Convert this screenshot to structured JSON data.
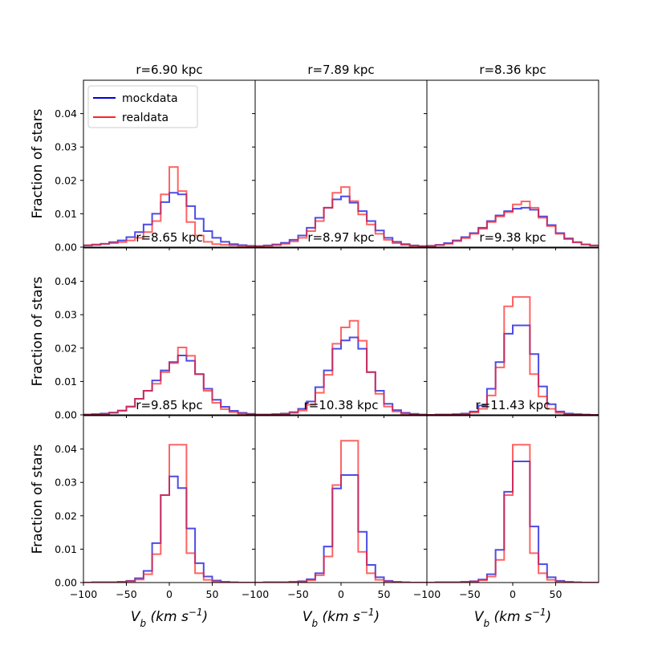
{
  "chart_data": {
    "type": "histogram-grid",
    "bin_edges": [
      -100,
      -90,
      -80,
      -70,
      -60,
      -50,
      -40,
      -30,
      -20,
      -10,
      0,
      10,
      20,
      30,
      40,
      50,
      60,
      70,
      80,
      90,
      100
    ],
    "xlim": [
      -100,
      100
    ],
    "ylim": [
      0,
      0.05
    ],
    "xticks": [
      -100,
      -50,
      0,
      50
    ],
    "xtick_labels": [
      "−100",
      "−50",
      "0",
      "50"
    ],
    "yticks": [
      0,
      0.01,
      0.02,
      0.03,
      0.04
    ],
    "ytick_labels": [
      "0.00",
      "0.01",
      "0.02",
      "0.03",
      "0.04"
    ],
    "ylabel": "Fraction of stars",
    "xlabel_main": "V",
    "xlabel_sub": "b",
    "xlabel_unit": "(km s",
    "xlabel_exp": "−1",
    "xlabel_close": ")",
    "legend": {
      "location": "upper-left of first panel",
      "entries": [
        {
          "label": "mockdata",
          "color": "#0000dd"
        },
        {
          "label": "realdata",
          "color": "#ff2222"
        }
      ]
    },
    "series_colors": {
      "mockdata": "#0000dd",
      "realdata": "#ff2222"
    },
    "panels": [
      {
        "title": "r=6.90 kpc",
        "mock": [
          0.0005,
          0.0007,
          0.001,
          0.0015,
          0.002,
          0.003,
          0.0045,
          0.0068,
          0.01,
          0.0135,
          0.0163,
          0.0158,
          0.0123,
          0.0085,
          0.0048,
          0.0028,
          0.0016,
          0.0009,
          0.0006,
          0.0004
        ],
        "real": [
          0.0006,
          0.0008,
          0.001,
          0.0012,
          0.0015,
          0.002,
          0.0028,
          0.0045,
          0.0078,
          0.0158,
          0.024,
          0.0168,
          0.0075,
          0.0035,
          0.0016,
          0.0009,
          0.0007,
          0.0005,
          0.0004,
          0.0003
        ]
      },
      {
        "title": "r=7.89 kpc",
        "mock": [
          0.0003,
          0.0005,
          0.0008,
          0.0013,
          0.0022,
          0.0035,
          0.0058,
          0.0088,
          0.0118,
          0.0143,
          0.0152,
          0.0133,
          0.0108,
          0.0078,
          0.005,
          0.0028,
          0.0016,
          0.0009,
          0.0005,
          0.0003
        ],
        "real": [
          0.0003,
          0.0004,
          0.0006,
          0.001,
          0.0017,
          0.0028,
          0.0048,
          0.0078,
          0.0118,
          0.0163,
          0.018,
          0.0138,
          0.0098,
          0.0068,
          0.004,
          0.0022,
          0.0012,
          0.0007,
          0.0004,
          0.0003
        ]
      },
      {
        "title": "r=8.36 kpc",
        "mock": [
          0.0004,
          0.0007,
          0.0012,
          0.002,
          0.003,
          0.0042,
          0.0058,
          0.0078,
          0.0095,
          0.0108,
          0.0115,
          0.0118,
          0.0112,
          0.0092,
          0.0066,
          0.0042,
          0.0026,
          0.0015,
          0.0008,
          0.0005
        ],
        "real": [
          0.0004,
          0.0006,
          0.001,
          0.0018,
          0.0027,
          0.004,
          0.0055,
          0.0075,
          0.0092,
          0.0105,
          0.0128,
          0.0137,
          0.0118,
          0.0088,
          0.0063,
          0.004,
          0.0024,
          0.0014,
          0.0008,
          0.0005
        ]
      },
      {
        "title": "r=8.65 kpc",
        "mock": [
          0.0001,
          0.0002,
          0.0004,
          0.0007,
          0.0013,
          0.0025,
          0.0048,
          0.0072,
          0.0103,
          0.0133,
          0.0158,
          0.0178,
          0.0162,
          0.0122,
          0.0078,
          0.0045,
          0.0024,
          0.0012,
          0.0006,
          0.0003
        ],
        "real": [
          0.0001,
          0.0002,
          0.0003,
          0.0006,
          0.0012,
          0.0024,
          0.0048,
          0.0072,
          0.0093,
          0.0128,
          0.0155,
          0.0202,
          0.0177,
          0.0122,
          0.0072,
          0.0036,
          0.0017,
          0.0008,
          0.0004,
          0.0002
        ]
      },
      {
        "title": "r=8.97 kpc",
        "mock": [
          0.0001,
          0.0001,
          0.0002,
          0.0004,
          0.0008,
          0.0018,
          0.004,
          0.0083,
          0.0133,
          0.0198,
          0.0223,
          0.0232,
          0.0198,
          0.0128,
          0.0072,
          0.0033,
          0.0014,
          0.0006,
          0.0003,
          0.0001
        ],
        "real": [
          0.0001,
          0.0001,
          0.0002,
          0.0003,
          0.0006,
          0.0013,
          0.003,
          0.0066,
          0.012,
          0.0213,
          0.0262,
          0.0282,
          0.0222,
          0.0128,
          0.0063,
          0.0025,
          0.001,
          0.0004,
          0.0002,
          0.0001
        ]
      },
      {
        "title": "r=9.38 kpc",
        "mock": [
          0,
          0.0001,
          0.0001,
          0.0002,
          0.0004,
          0.001,
          0.0028,
          0.0078,
          0.0158,
          0.0243,
          0.0268,
          0.0268,
          0.0182,
          0.0085,
          0.0032,
          0.001,
          0.0004,
          0.0002,
          0.0001,
          0
        ],
        "real": [
          0,
          0.0001,
          0.0001,
          0.0001,
          0.0003,
          0.0007,
          0.0018,
          0.0058,
          0.0142,
          0.0325,
          0.0353,
          0.0353,
          0.0122,
          0.0055,
          0.0018,
          0.0006,
          0.0002,
          0.0001,
          0,
          0
        ]
      },
      {
        "title": "r=9.85 kpc",
        "mock": [
          0,
          0.0001,
          0.0001,
          0.0001,
          0.0002,
          0.0005,
          0.0013,
          0.0035,
          0.0118,
          0.0262,
          0.0318,
          0.0283,
          0.0162,
          0.0058,
          0.0018,
          0.0006,
          0.0002,
          0.0001,
          0,
          0
        ],
        "real": [
          0,
          0.0001,
          0.0001,
          0.0001,
          0.0002,
          0.0004,
          0.0009,
          0.0025,
          0.0085,
          0.0262,
          0.0413,
          0.0413,
          0.0088,
          0.0028,
          0.0008,
          0.0003,
          0.0001,
          0,
          0,
          0
        ],
        "mock_note": "peak near 0.031, red peak near 0.041"
      },
      {
        "title": "r=10.38 kpc",
        "mock": [
          0,
          0.0001,
          0.0001,
          0.0001,
          0.0002,
          0.0004,
          0.001,
          0.0028,
          0.0108,
          0.0282,
          0.0322,
          0.0322,
          0.0152,
          0.0053,
          0.0016,
          0.0005,
          0.0002,
          0.0001,
          0,
          0
        ],
        "real": [
          0,
          0.0001,
          0.0001,
          0.0001,
          0.0002,
          0.0003,
          0.0007,
          0.0022,
          0.0078,
          0.0292,
          0.0425,
          0.0425,
          0.0092,
          0.0028,
          0.0008,
          0.0003,
          0.0001,
          0,
          0,
          0
        ]
      },
      {
        "title": "r=11.43 kpc",
        "mock": [
          0,
          0.0001,
          0.0001,
          0.0001,
          0.0002,
          0.0004,
          0.0009,
          0.0025,
          0.0098,
          0.0272,
          0.0363,
          0.0363,
          0.0168,
          0.0055,
          0.0016,
          0.0005,
          0.0002,
          0.0001,
          0,
          0
        ],
        "real": [
          0,
          0.0001,
          0.0001,
          0.0001,
          0.0002,
          0.0003,
          0.0007,
          0.0018,
          0.0068,
          0.0262,
          0.0413,
          0.0413,
          0.0088,
          0.0028,
          0.0008,
          0.0003,
          0.0001,
          0,
          0,
          0
        ]
      }
    ]
  }
}
